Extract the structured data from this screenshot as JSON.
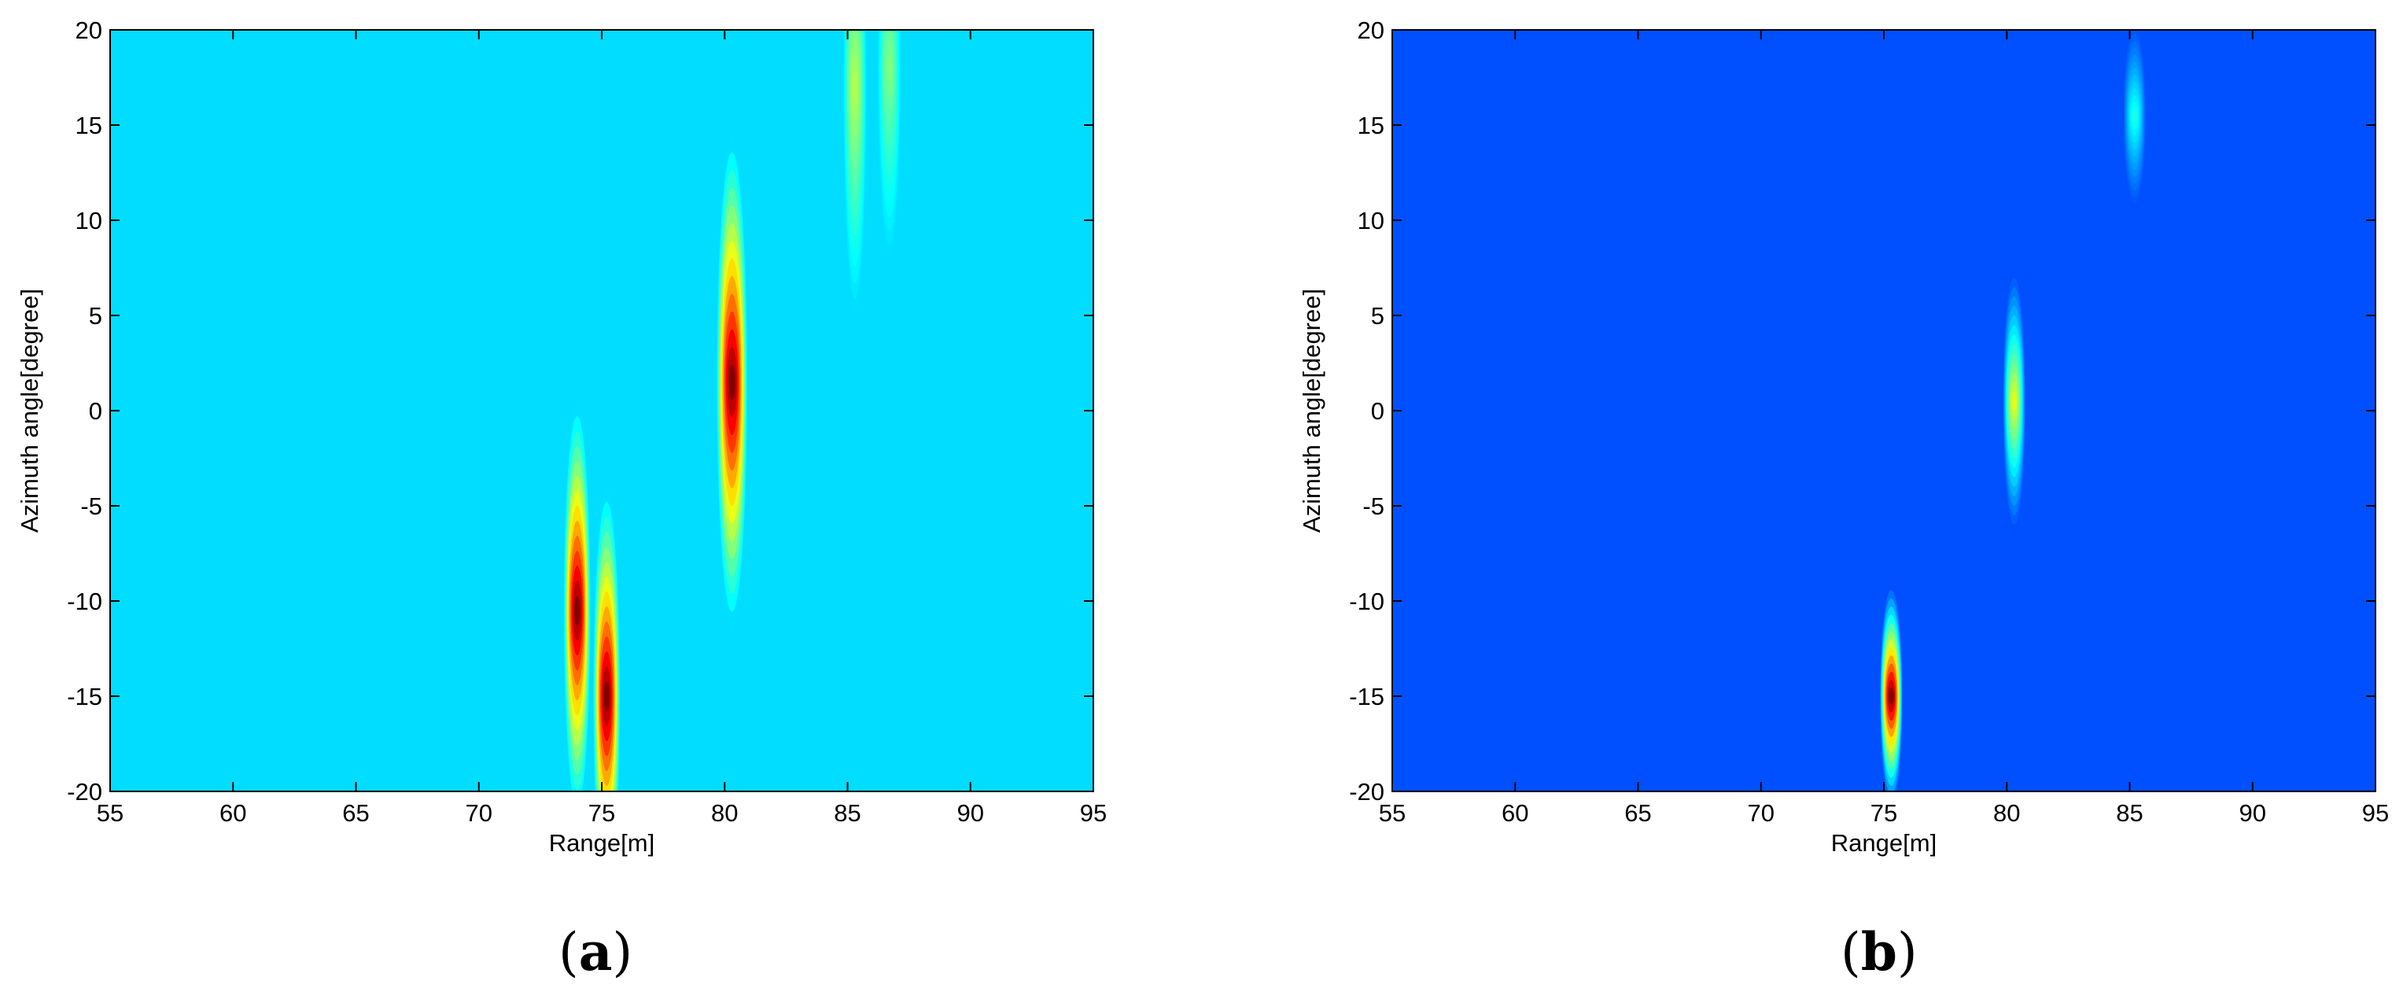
{
  "chart_data": [
    {
      "type": "heatmap",
      "panel_label": "a",
      "xlabel": "Range[m]",
      "ylabel": "Azimuth angle[degree]",
      "xlim": [
        55,
        95
      ],
      "ylim": [
        -20,
        20
      ],
      "xticks": [
        55,
        60,
        65,
        70,
        75,
        80,
        85,
        90,
        95
      ],
      "yticks": [
        -20,
        -15,
        -10,
        -5,
        0,
        5,
        10,
        15,
        20
      ],
      "colormap": "jet",
      "background_color": "#00ddff",
      "targets": [
        {
          "range": 74.0,
          "azimuth": -10.5,
          "range_width": 0.35,
          "azimuth_extent": 11,
          "peak": 1.0
        },
        {
          "range": 75.2,
          "azimuth": -15.0,
          "range_width": 0.35,
          "azimuth_extent": 11,
          "peak": 1.0
        },
        {
          "range": 80.3,
          "azimuth": 1.5,
          "range_width": 0.4,
          "azimuth_extent": 13,
          "peak": 1.0
        },
        {
          "range": 85.3,
          "azimuth": 17.0,
          "range_width": 0.3,
          "azimuth_extent": 12,
          "peak": 0.55
        },
        {
          "range": 86.7,
          "azimuth": 18.0,
          "range_width": 0.3,
          "azimuth_extent": 10,
          "peak": 0.5
        }
      ]
    },
    {
      "type": "heatmap",
      "panel_label": "b",
      "xlabel": "Range[m]",
      "ylabel": "Azimuth angle[degree]",
      "xlim": [
        55,
        95
      ],
      "ylim": [
        -20,
        20
      ],
      "xticks": [
        55,
        60,
        65,
        70,
        75,
        80,
        85,
        90,
        95
      ],
      "yticks": [
        -20,
        -15,
        -10,
        -5,
        0,
        5,
        10,
        15,
        20
      ],
      "colormap": "jet",
      "background_color": "#0050ff",
      "targets": [
        {
          "range": 75.3,
          "azimuth": -15.0,
          "range_width": 0.3,
          "azimuth_extent": 6,
          "peak": 1.0
        },
        {
          "range": 80.3,
          "azimuth": 0.5,
          "range_width": 0.3,
          "azimuth_extent": 7,
          "peak": 0.6
        },
        {
          "range": 85.2,
          "azimuth": 15.5,
          "range_width": 0.3,
          "azimuth_extent": 5,
          "peak": 0.4
        }
      ]
    }
  ]
}
